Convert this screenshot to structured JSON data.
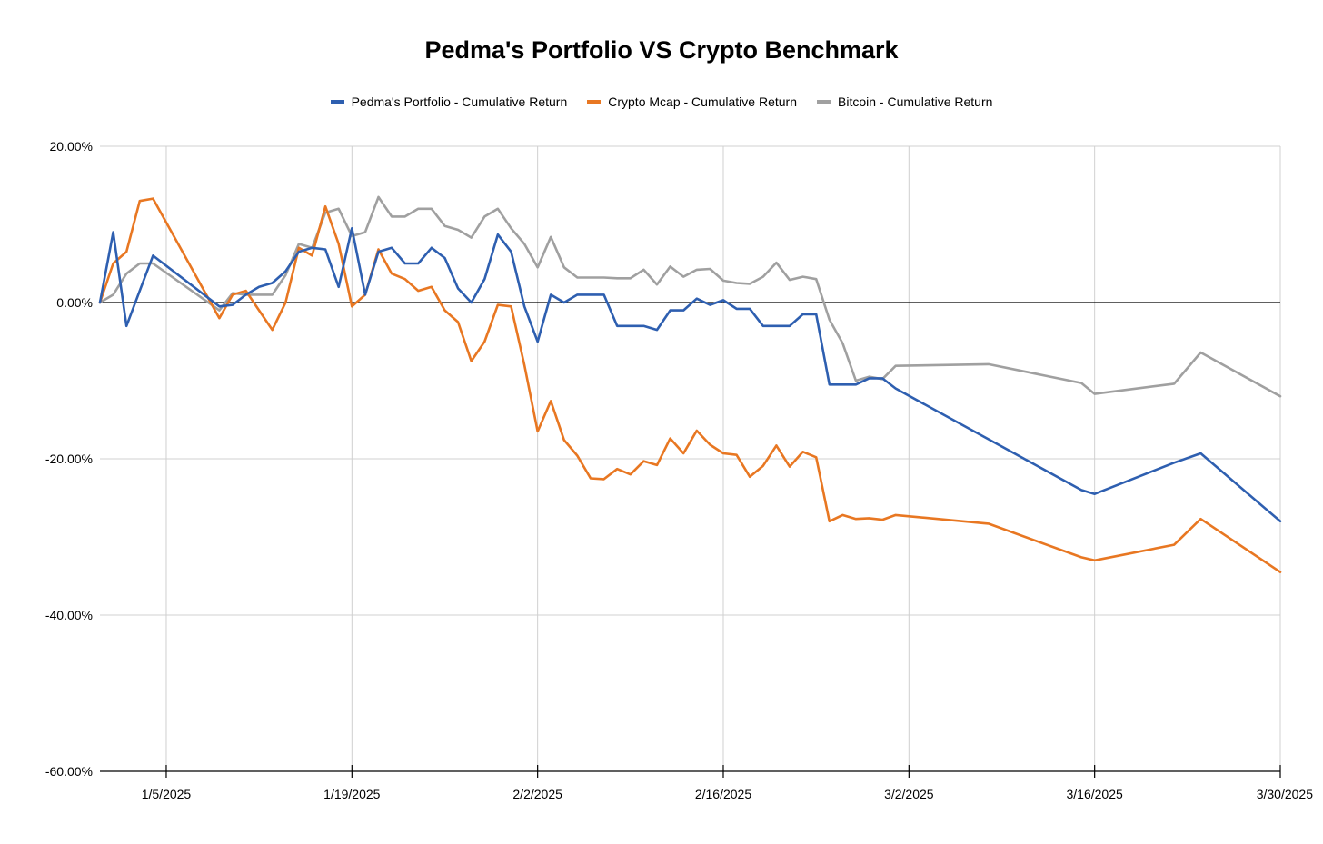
{
  "chart_data": {
    "type": "line",
    "title": "Pedma's Portfolio VS Crypto Benchmark",
    "xlabel": "",
    "ylabel": "",
    "ylim": [
      -60,
      20
    ],
    "xlim": [
      "12/31/2024",
      "3/30/2025"
    ],
    "y_ticks": [
      "20.00%",
      "0.00%",
      "-20.00%",
      "-40.00%",
      "-60.00%"
    ],
    "y_tick_values": [
      20,
      0,
      -20,
      -40,
      -60
    ],
    "x_ticks": [
      "1/5/2025",
      "1/19/2025",
      "2/2/2025",
      "2/16/2025",
      "3/2/2025",
      "3/16/2025",
      "3/30/2025"
    ],
    "x_tick_days": [
      5,
      19,
      33,
      47,
      61,
      75,
      89
    ],
    "grid": true,
    "legend_position": "top",
    "series": [
      {
        "name": "Pedma's Portfolio - Cumulative Return",
        "color": "#2e5fb0",
        "days": [
          0,
          1,
          2,
          3,
          4,
          9,
          10,
          11,
          12,
          13,
          14,
          15,
          16,
          17,
          18,
          19,
          20,
          21,
          22,
          23,
          24,
          25,
          26,
          27,
          28,
          29,
          30,
          31,
          32,
          33,
          34,
          35,
          36,
          37,
          38,
          39,
          40,
          41,
          42,
          43,
          44,
          45,
          46,
          47,
          48,
          49,
          50,
          51,
          52,
          53,
          54,
          55,
          56,
          57,
          58,
          59,
          60,
          67,
          74,
          75,
          81,
          83,
          89
        ],
        "values": [
          0,
          9,
          -3,
          1.5,
          6,
          -0.5,
          -0.3,
          1,
          2,
          2.5,
          4,
          6.5,
          7,
          6.8,
          2,
          9.5,
          1,
          6.5,
          7,
          5,
          5,
          7,
          5.7,
          1.8,
          0,
          3,
          8.7,
          6.5,
          -0.5,
          -5,
          1,
          0,
          1,
          1,
          1,
          -3,
          -3,
          -3,
          -3.5,
          -1,
          -1,
          0.5,
          -0.3,
          0.3,
          -0.8,
          -0.8,
          -3,
          -3,
          -3,
          -1.5,
          -1.5,
          -10.5,
          -10.5,
          -10.5,
          -9.7,
          -9.7,
          -11,
          -17.5,
          -24,
          -24.5,
          -20.5,
          -19.3,
          -28
        ]
      },
      {
        "name": "Crypto Mcap - Cumulative Return",
        "color": "#e87722",
        "days": [
          0,
          1,
          2,
          3,
          4,
          9,
          10,
          11,
          12,
          13,
          14,
          15,
          16,
          17,
          18,
          19,
          20,
          21,
          22,
          23,
          24,
          25,
          26,
          27,
          28,
          29,
          30,
          31,
          32,
          33,
          34,
          35,
          36,
          37,
          38,
          39,
          40,
          41,
          42,
          43,
          44,
          45,
          46,
          47,
          48,
          49,
          50,
          51,
          52,
          53,
          54,
          55,
          56,
          57,
          58,
          59,
          60,
          67,
          74,
          75,
          81,
          83,
          89
        ],
        "values": [
          0,
          5,
          6.5,
          13,
          13.3,
          -2,
          1,
          1.5,
          -1,
          -3.5,
          0,
          7,
          6,
          12.3,
          7.5,
          -0.5,
          1,
          6.8,
          3.7,
          3,
          1.5,
          2,
          -1,
          -2.5,
          -7.5,
          -5,
          -0.3,
          -0.5,
          -8,
          -16.5,
          -12.6,
          -17.6,
          -19.6,
          -22.5,
          -22.6,
          -21.3,
          -22,
          -20.3,
          -20.8,
          -17.4,
          -19.3,
          -16.4,
          -18.2,
          -19.3,
          -19.5,
          -22.3,
          -20.9,
          -18.3,
          -21,
          -19.1,
          -19.8,
          -28,
          -27.2,
          -27.7,
          -27.6,
          -27.8,
          -27.2,
          -28.3,
          -32.6,
          -33,
          -31,
          -27.7,
          -34.5
        ]
      },
      {
        "name": "Bitcoin - Cumulative Return",
        "color": "#a0a0a0",
        "days": [
          0,
          1,
          2,
          3,
          4,
          9,
          10,
          11,
          12,
          13,
          14,
          15,
          16,
          17,
          18,
          19,
          20,
          21,
          22,
          23,
          24,
          25,
          26,
          27,
          28,
          29,
          30,
          31,
          32,
          33,
          34,
          35,
          36,
          37,
          38,
          39,
          40,
          41,
          42,
          43,
          44,
          45,
          46,
          47,
          48,
          49,
          50,
          51,
          52,
          53,
          54,
          55,
          56,
          57,
          58,
          59,
          60,
          67,
          74,
          75,
          81,
          83,
          89
        ],
        "values": [
          0,
          1,
          3.7,
          5,
          5,
          -1,
          1.2,
          1,
          1,
          1,
          3.5,
          7.5,
          7,
          11.5,
          12,
          8.5,
          9,
          13.5,
          11,
          11,
          12,
          12,
          9.8,
          9.3,
          8.3,
          11,
          12,
          9.5,
          7.5,
          4.5,
          8.4,
          4.5,
          3.2,
          3.2,
          3.2,
          3.1,
          3.1,
          4.2,
          2.3,
          4.6,
          3.3,
          4.2,
          4.3,
          2.8,
          2.5,
          2.4,
          3.3,
          5.1,
          2.9,
          3.3,
          3,
          -2.2,
          -5.2,
          -10,
          -9.5,
          -9.8,
          -8.1,
          -7.9,
          -10.3,
          -11.7,
          -10.4,
          -6.4,
          -12
        ]
      }
    ]
  }
}
